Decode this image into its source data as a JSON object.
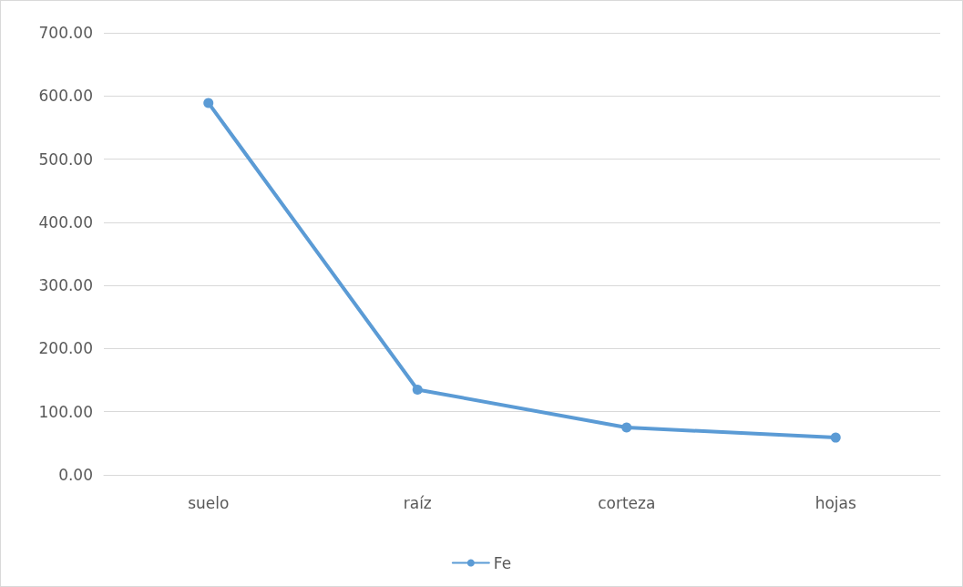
{
  "chart_data": {
    "type": "line",
    "categories": [
      "suelo",
      "raíz",
      "corteza",
      "hojas"
    ],
    "series": [
      {
        "name": "Fe",
        "color": "#5b9bd5",
        "values": [
          589,
          135,
          75,
          59
        ]
      }
    ],
    "ylim": [
      0,
      700
    ],
    "yticks": [
      {
        "value": 0,
        "label": "0.00"
      },
      {
        "value": 100,
        "label": "100.00"
      },
      {
        "value": 200,
        "label": "200.00"
      },
      {
        "value": 300,
        "label": "300.00"
      },
      {
        "value": 400,
        "label": "400.00"
      },
      {
        "value": 500,
        "label": "500.00"
      },
      {
        "value": 600,
        "label": "600.00"
      },
      {
        "value": 700,
        "label": "700.00"
      }
    ],
    "grid": "y",
    "legend": "bottom",
    "marker": "circle",
    "line_style": "solid"
  }
}
